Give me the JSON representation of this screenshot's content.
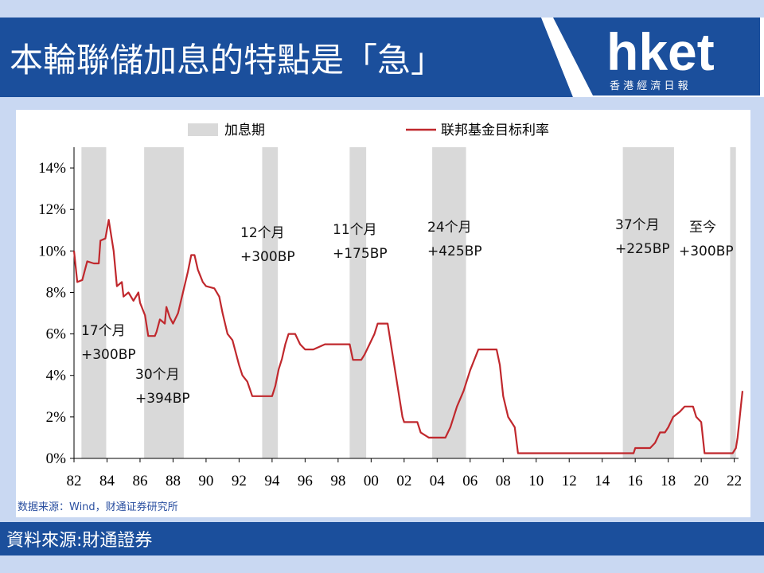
{
  "header": {
    "title": "本輪聯儲加息的特點是「急」",
    "logo": {
      "name": "hket",
      "subtitle": "香 港 經 濟 日 報"
    }
  },
  "chart_data": {
    "type": "line",
    "x": [
      1982.0,
      1982.2,
      1982.5,
      1982.8,
      1983.2,
      1983.5,
      1983.6,
      1983.9,
      1984.1,
      1984.4,
      1984.6,
      1984.9,
      1985.0,
      1985.3,
      1985.6,
      1985.9,
      1986.0,
      1986.3,
      1986.5,
      1986.9,
      1987.0,
      1987.2,
      1987.5,
      1987.6,
      1987.8,
      1988.0,
      1988.3,
      1988.6,
      1988.9,
      1989.1,
      1989.3,
      1989.5,
      1989.8,
      1990.0,
      1990.5,
      1990.8,
      1991.0,
      1991.3,
      1991.6,
      1992.0,
      1992.2,
      1992.5,
      1992.8,
      1993.4,
      1994.0,
      1994.2,
      1994.4,
      1994.6,
      1994.8,
      1995.0,
      1995.4,
      1995.7,
      1996.0,
      1996.5,
      1997.2,
      1998.0,
      1998.7,
      1998.9,
      1999.4,
      1999.6,
      1999.9,
      2000.2,
      2000.4,
      2001.0,
      2001.3,
      2001.6,
      2001.9,
      2002.0,
      2002.8,
      2003.0,
      2003.5,
      2004.5,
      2004.8,
      2005.2,
      2005.6,
      2006.0,
      2006.5,
      2007.6,
      2007.8,
      2008.0,
      2008.3,
      2008.7,
      2008.9,
      2015.9,
      2016.0,
      2016.9,
      2017.2,
      2017.5,
      2017.8,
      2018.0,
      2018.3,
      2018.7,
      2019.0,
      2019.5,
      2019.7,
      2020.0,
      2020.2,
      2021.9,
      2022.1,
      2022.2,
      2022.3,
      2022.4,
      2022.5
    ],
    "series": [
      {
        "name": "联邦基金目标利率",
        "color": "#c0282d",
        "values": [
          10,
          8.5,
          8.6,
          9.5,
          9.4,
          9.4,
          10.5,
          10.6,
          11.5,
          10.0,
          8.3,
          8.5,
          7.8,
          8.0,
          7.6,
          8.0,
          7.5,
          6.9,
          5.9,
          5.9,
          6.1,
          6.7,
          6.5,
          7.3,
          6.8,
          6.5,
          7.0,
          8.0,
          9.0,
          9.8,
          9.8,
          9.1,
          8.5,
          8.3,
          8.2,
          7.8,
          7.0,
          6.0,
          5.7,
          4.5,
          4.0,
          3.7,
          3.0,
          3.0,
          3.0,
          3.5,
          4.3,
          4.8,
          5.5,
          6.0,
          6.0,
          5.5,
          5.25,
          5.25,
          5.5,
          5.5,
          5.5,
          4.75,
          4.75,
          5.0,
          5.5,
          6.0,
          6.5,
          6.5,
          5.0,
          3.5,
          2.0,
          1.75,
          1.75,
          1.25,
          1.0,
          1.0,
          1.5,
          2.5,
          3.25,
          4.25,
          5.25,
          5.25,
          4.5,
          3.0,
          2.0,
          1.5,
          0.25,
          0.25,
          0.5,
          0.5,
          0.75,
          1.25,
          1.25,
          1.5,
          2.0,
          2.25,
          2.5,
          2.5,
          2.0,
          1.75,
          0.25,
          0.25,
          0.5,
          1.0,
          1.75,
          2.5,
          3.25
        ]
      }
    ],
    "shaded_periods": {
      "name": "加息期",
      "color": "#d9d9d9",
      "ranges": [
        [
          1982.45,
          1983.95
        ],
        [
          1986.25,
          1988.65
        ],
        [
          1993.4,
          1994.35
        ],
        [
          1998.7,
          1999.7
        ],
        [
          2003.7,
          2005.75
        ],
        [
          2015.25,
          2018.35
        ],
        [
          2021.75,
          2022.1
        ]
      ]
    },
    "xlim": [
      1982,
      2022.5
    ],
    "xticks": [
      {
        "value": 1982,
        "label": "82"
      },
      {
        "value": 1984,
        "label": "84"
      },
      {
        "value": 1986,
        "label": "86"
      },
      {
        "value": 1988,
        "label": "88"
      },
      {
        "value": 1990,
        "label": "90"
      },
      {
        "value": 1992,
        "label": "92"
      },
      {
        "value": 1994,
        "label": "94"
      },
      {
        "value": 1996,
        "label": "96"
      },
      {
        "value": 1998,
        "label": "98"
      },
      {
        "value": 2000,
        "label": "00"
      },
      {
        "value": 2002,
        "label": "02"
      },
      {
        "value": 2004,
        "label": "04"
      },
      {
        "value": 2006,
        "label": "06"
      },
      {
        "value": 2008,
        "label": "08"
      },
      {
        "value": 2010,
        "label": "10"
      },
      {
        "value": 2012,
        "label": "12"
      },
      {
        "value": 2014,
        "label": "14"
      },
      {
        "value": 2016,
        "label": "16"
      },
      {
        "value": 2018,
        "label": "18"
      },
      {
        "value": 2020,
        "label": "20"
      },
      {
        "value": 2022,
        "label": "22"
      }
    ],
    "ylim": [
      0,
      15
    ],
    "yticks": [
      {
        "value": 0,
        "label": "0%"
      },
      {
        "value": 2,
        "label": "2%"
      },
      {
        "value": 4,
        "label": "4%"
      },
      {
        "value": 6,
        "label": "6%"
      },
      {
        "value": 8,
        "label": "8%"
      },
      {
        "value": 10,
        "label": "10%"
      },
      {
        "value": 12,
        "label": "12%"
      },
      {
        "value": 14,
        "label": "14%"
      }
    ],
    "annotations": [
      [
        "17个月",
        "+300BP"
      ],
      [
        "30个月",
        "+394BP"
      ],
      [
        "12个月",
        "+300BP"
      ],
      [
        "11个月",
        "+175BP"
      ],
      [
        "24个月",
        "+425BP"
      ],
      [
        "37个月",
        "+225BP"
      ],
      [
        "至今",
        "+300BP"
      ]
    ],
    "note": "数据来源：Wind，财通证券研究所"
  },
  "footer": {
    "source": "資料來源:財通證券"
  }
}
